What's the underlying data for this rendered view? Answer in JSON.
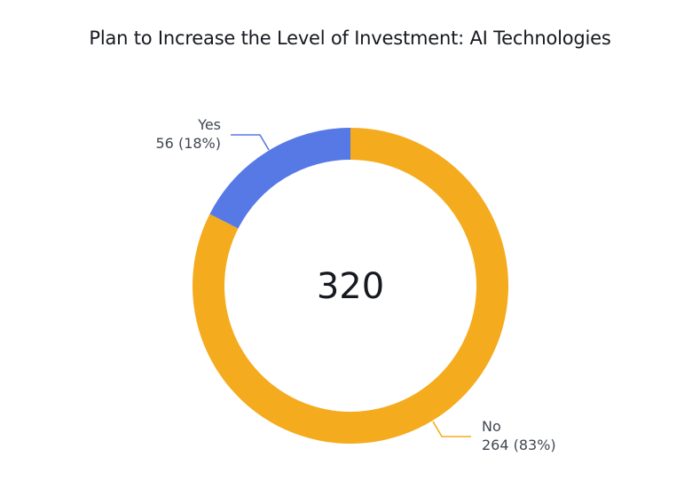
{
  "title": "Plan to Increase the Level of Investment: AI Technologies",
  "center": {
    "total": "320"
  },
  "labels": [
    {
      "name": "Yes",
      "value_text": "56 (18%)"
    },
    {
      "name": "No",
      "value_text": "264 (83%)"
    }
  ],
  "colors": {
    "yes": "#5779E6",
    "no": "#F5AB1E"
  },
  "chart_data": {
    "type": "pie",
    "variant": "donut",
    "title": "Plan to Increase the Level of Investment: AI Technologies",
    "total": 320,
    "categories": [
      "Yes",
      "No"
    ],
    "values": [
      56,
      264
    ],
    "percent_labels": [
      "18%",
      "83%"
    ],
    "colors": [
      "#5779E6",
      "#F5AB1E"
    ],
    "center_label": "320",
    "legend": "none (direct leader-line labels)"
  }
}
